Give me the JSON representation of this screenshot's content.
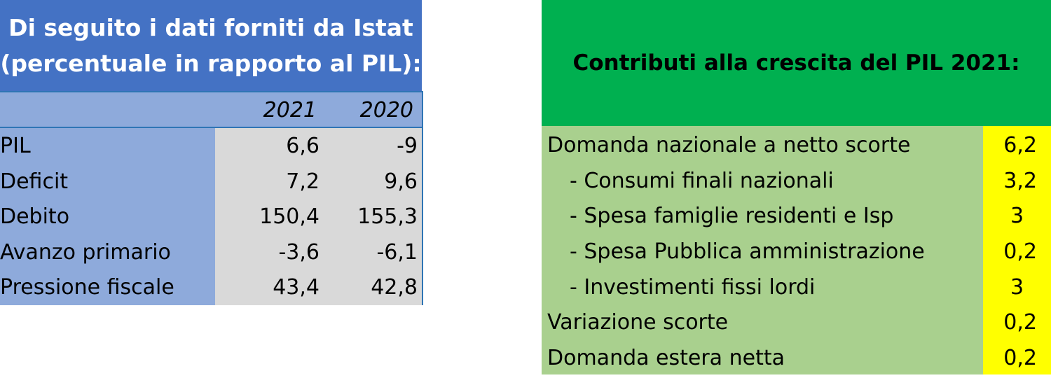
{
  "left_table": {
    "title_line1": "Di seguito i dati forniti da Istat",
    "title_line2": "(percentuale in rapporto al PIL):",
    "col_2021": "2021",
    "col_2020": "2020",
    "rows": [
      {
        "label": "PIL",
        "v2021": "6,6",
        "v2020": "-9"
      },
      {
        "label": "Deficit",
        "v2021": "7,2",
        "v2020": "9,6"
      },
      {
        "label": "Debito",
        "v2021": "150,4",
        "v2020": "155,3"
      },
      {
        "label": "Avanzo primario",
        "v2021": "-3,6",
        "v2020": "-6,1"
      },
      {
        "label": "Pressione fiscale",
        "v2021": "43,4",
        "v2020": "42,8"
      }
    ]
  },
  "right_table": {
    "title": "Contributi alla crescita del PIL 2021:",
    "rows": [
      {
        "label": "Domanda nazionale a netto scorte",
        "value": "6,2"
      },
      {
        "label": "- Consumi finali nazionali",
        "value": "3,2"
      },
      {
        "label": "- Spesa famiglie residenti e Isp",
        "value": "3"
      },
      {
        "label": "- Spesa Pubblica amministrazione",
        "value": "0,2"
      },
      {
        "label": "- Investimenti fissi lordi",
        "value": "3"
      },
      {
        "label": "Variazione scorte",
        "value": "0,2"
      },
      {
        "label": "Domanda estera netta",
        "value": "0,2"
      }
    ]
  },
  "colors": {
    "left_title_bg": "#4472c4",
    "left_body_bg": "#8eaadb",
    "left_value_bg": "#d9d9d9",
    "right_title_bg": "#00b050",
    "right_body_bg": "#a9d08e",
    "right_value_bg": "#ffff00"
  }
}
